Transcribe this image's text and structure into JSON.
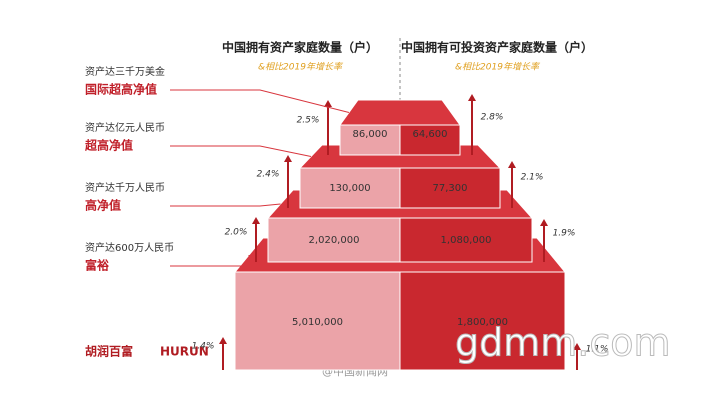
{
  "chart_data": {
    "type": "pyramid",
    "subtitle": "&相比2019年增长率",
    "tiers": [
      {
        "threshold": "资产达三千万美金",
        "level": "国际超高净值"
      },
      {
        "threshold": "资产达亿元人民币",
        "level": "超高净值"
      },
      {
        "threshold": "资产达千万人民币",
        "level": "高净值"
      },
      {
        "threshold": "资产达600万人民币",
        "level": "富裕"
      }
    ],
    "series": [
      {
        "name": "中国拥有资产家庭数量（户）",
        "color": "#eba3a8",
        "values": [
          86000,
          130000,
          2020000,
          5010000
        ],
        "value_labels": [
          "86,000",
          "130,000",
          "2,020,000",
          "5,010,000"
        ],
        "growth": [
          2.5,
          2.4,
          2.0,
          1.4
        ],
        "growth_labels": [
          "2.5%",
          "2.4%",
          "2.0%",
          "1.4%"
        ]
      },
      {
        "name": "中国拥有可投资资产家庭数量（户）",
        "color": "#c9282f",
        "values": [
          64600,
          77300,
          1080000,
          1800000
        ],
        "value_labels": [
          "64,600",
          "77,300",
          "1,080,000",
          "1,800,000"
        ],
        "growth": [
          2.8,
          2.1,
          1.9,
          1.1
        ],
        "growth_labels": [
          "2.8%",
          "2.1%",
          "1.9%",
          "1.1%"
        ]
      }
    ]
  },
  "logos": [
    "胡润百富",
    "HURUN"
  ],
  "watermarks": [
    "gdmm.com",
    "@中国新闻网"
  ]
}
